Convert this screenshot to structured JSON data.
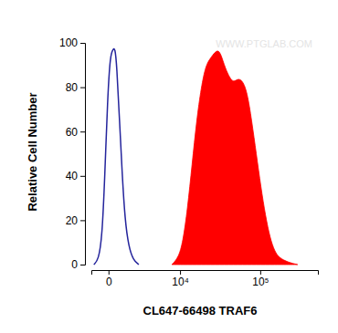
{
  "chart_data": {
    "type": "line",
    "xlabel": "CL647-66498 TRAF6",
    "ylabel": "Relative Cell Number",
    "annotations": [
      "WWW.PTGLAB.COM"
    ],
    "log": "x",
    "xlim": [
      -1000,
      480000
    ],
    "xticks": [
      0,
      {
        "value": 10000,
        "label": "10⁴"
      },
      {
        "value": 100000,
        "label": "10⁵"
      }
    ],
    "ylim": [
      0,
      100
    ],
    "yticks": [
      0,
      20,
      40,
      60,
      80,
      100
    ],
    "grid": false,
    "series": [
      {
        "type": "line",
        "color": "#24249c",
        "x": [
          -826,
          -532,
          -322,
          -177,
          -43,
          86,
          224,
          322,
          425,
          588,
          764,
          955,
          1230,
          1617,
          2148
        ],
        "values": [
          0,
          2,
          12,
          40,
          75,
          95,
          97,
          98,
          90,
          65,
          40,
          20,
          8,
          2,
          0
        ]
      },
      {
        "type": "area",
        "color": "#ff0000",
        "x": [
          7680,
          9460,
          10920,
          12600,
          14470,
          16600,
          19010,
          21740,
          24830,
          28320,
          32280,
          36760,
          41830,
          47550,
          54040,
          61390,
          69720,
          79080,
          89740,
          101800,
          115500,
          130800,
          148300,
          168100,
          215700,
          276800
        ],
        "values": [
          0,
          3,
          10,
          25,
          45,
          65,
          80,
          90,
          93,
          96,
          97,
          90,
          85,
          82,
          84,
          83,
          78,
          65,
          50,
          35,
          22,
          12,
          6,
          3,
          1,
          0
        ]
      }
    ]
  }
}
